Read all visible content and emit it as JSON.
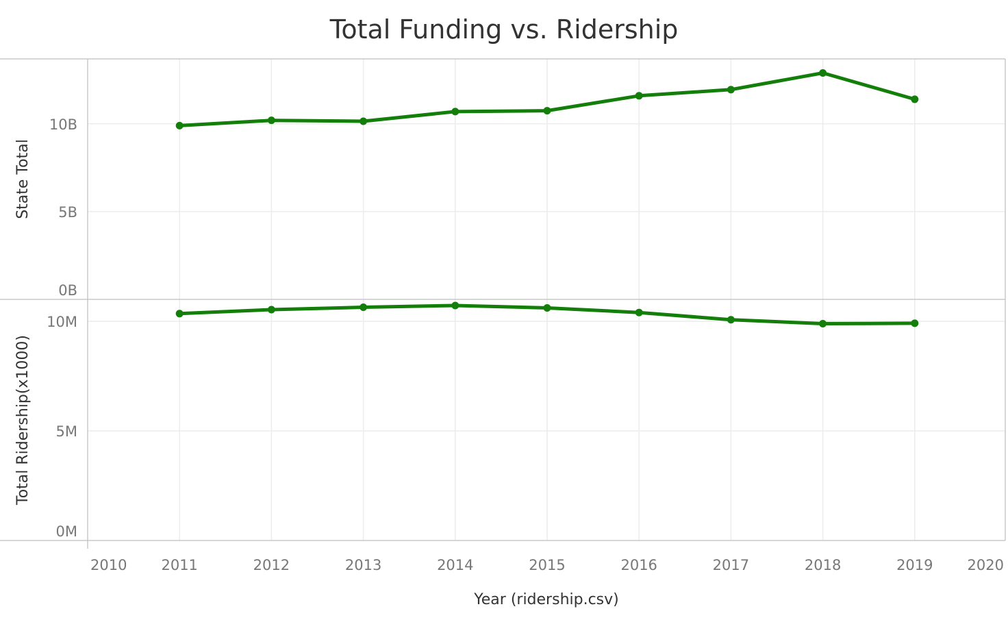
{
  "chart_data": {
    "type": "line",
    "title": "Total Funding vs. Ridership",
    "xlabel": "Year (ridership.csv)",
    "x_ticks": [
      "2010",
      "2011",
      "2012",
      "2013",
      "2014",
      "2015",
      "2016",
      "2017",
      "2018",
      "2019",
      "2020"
    ],
    "xlim": [
      2010,
      2020
    ],
    "line_color": "#137f0a",
    "grid": true,
    "panels": [
      {
        "ylabel": "State Total",
        "ylim": [
          0,
          13700000000
        ],
        "y_ticks": [
          {
            "value": 0,
            "label": "0B"
          },
          {
            "value": 5000000000,
            "label": "5B"
          },
          {
            "value": 10000000000,
            "label": "10B"
          }
        ],
        "series": [
          {
            "x": [
              2011,
              2012,
              2013,
              2014,
              2015,
              2016,
              2017,
              2018,
              2019
            ],
            "values": [
              9900000000,
              10200000000,
              10150000000,
              10700000000,
              10750000000,
              11600000000,
              11950000000,
              12900000000,
              11400000000
            ]
          }
        ]
      },
      {
        "ylabel": "Total Ridership(x1000)",
        "ylim": [
          0,
          11000000
        ],
        "y_ticks": [
          {
            "value": 0,
            "label": "0M"
          },
          {
            "value": 5000000,
            "label": "5M"
          },
          {
            "value": 10000000,
            "label": "10M"
          }
        ],
        "series": [
          {
            "x": [
              2011,
              2012,
              2013,
              2014,
              2015,
              2016,
              2017,
              2018,
              2019
            ],
            "values": [
              10350000,
              10530000,
              10640000,
              10720000,
              10610000,
              10400000,
              10070000,
              9890000,
              9910000
            ]
          }
        ]
      }
    ]
  }
}
